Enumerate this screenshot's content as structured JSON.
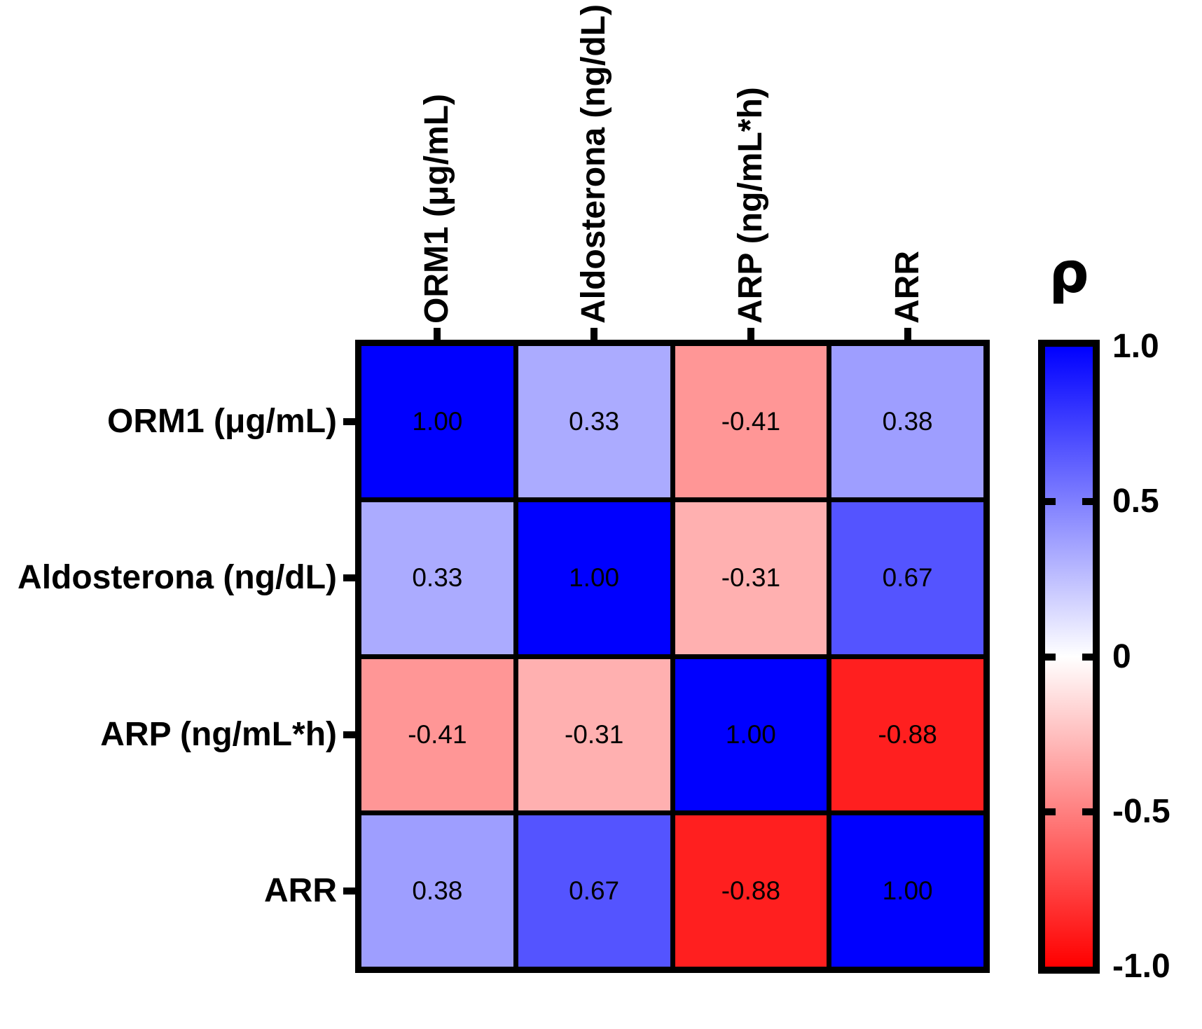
{
  "figure": {
    "background_color": "#FFFFFF",
    "text_color": "#000000",
    "grid_line_color": "#000000"
  },
  "chart_data": {
    "type": "heatmap",
    "subtype": "correlation-matrix",
    "title": "",
    "variables": [
      "ORM1 (μg/mL)",
      "Aldosterona (ng/dL)",
      "ARP (ng/mL*h)",
      "ARR"
    ],
    "matrix": [
      [
        1.0,
        0.33,
        -0.41,
        0.38
      ],
      [
        0.33,
        1.0,
        -0.31,
        0.67
      ],
      [
        -0.41,
        -0.31,
        1.0,
        -0.88
      ],
      [
        0.38,
        0.67,
        -0.88,
        1.0
      ]
    ],
    "cell_value_decimals": 2,
    "colorbar": {
      "title": "ρ",
      "tick_labels": [
        "1.0",
        "0.5",
        "0",
        "-0.5",
        "-1.0"
      ],
      "tick_values": [
        1.0,
        0.5,
        0,
        -0.5,
        -1.0
      ],
      "range": [
        -1.0,
        1.0
      ],
      "orientation": "vertical",
      "position": "right"
    },
    "colormap": {
      "max_color": "#0000FF",
      "mid_color": "#FFFFFF",
      "min_color": "#FF0000"
    },
    "layout_hints": {
      "row_labels_side": "left",
      "col_labels_side": "top",
      "col_labels_rotation_deg": 90,
      "gridlines": "on"
    }
  }
}
